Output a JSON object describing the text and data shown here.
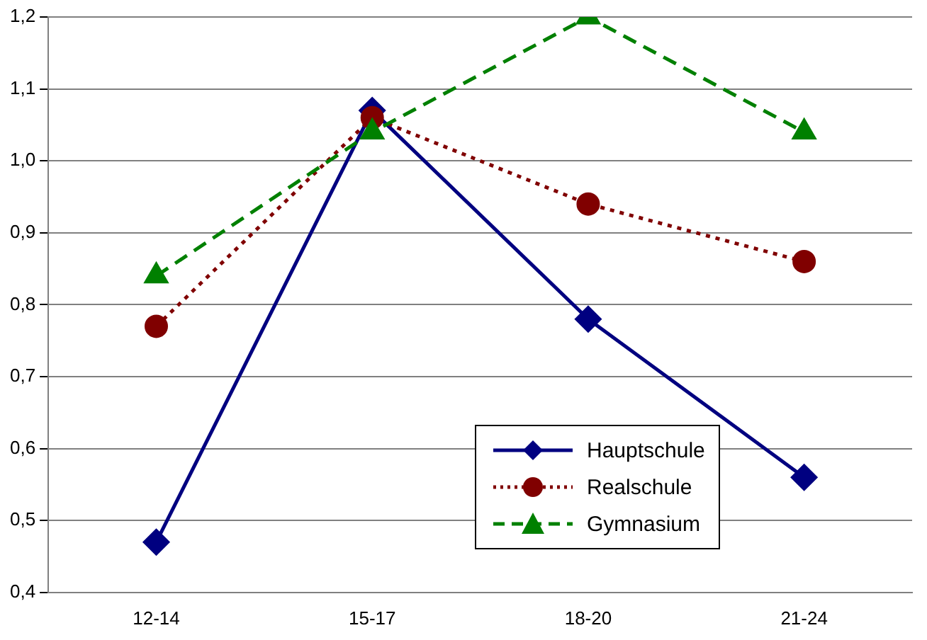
{
  "chart_data": {
    "type": "line",
    "categories": [
      "12-14",
      "15-17",
      "18-20",
      "21-24"
    ],
    "series": [
      {
        "name": "Hauptschule",
        "color": "#000080",
        "values": [
          0.47,
          1.07,
          0.78,
          0.56
        ],
        "marker": "diamond",
        "line_style": "solid"
      },
      {
        "name": "Realschule",
        "color": "#800000",
        "values": [
          0.77,
          1.06,
          0.94,
          0.86
        ],
        "marker": "circle",
        "line_style": "dotted"
      },
      {
        "name": "Gymnasium",
        "color": "#008000",
        "values": [
          0.84,
          1.04,
          1.2,
          1.04
        ],
        "marker": "triangle",
        "line_style": "dashed"
      }
    ],
    "ylim": [
      0.4,
      1.2
    ],
    "yticks": [
      {
        "value": 0.4,
        "label": "0,4"
      },
      {
        "value": 0.5,
        "label": "0,5"
      },
      {
        "value": 0.6,
        "label": "0,6"
      },
      {
        "value": 0.7,
        "label": "0,7"
      },
      {
        "value": 0.8,
        "label": "0,8"
      },
      {
        "value": 0.9,
        "label": "0,9"
      },
      {
        "value": 1.0,
        "label": "1,0"
      },
      {
        "value": 1.1,
        "label": "1,1"
      },
      {
        "value": 1.2,
        "label": "1,2"
      }
    ],
    "grid": "y",
    "legend": "bottom right"
  }
}
